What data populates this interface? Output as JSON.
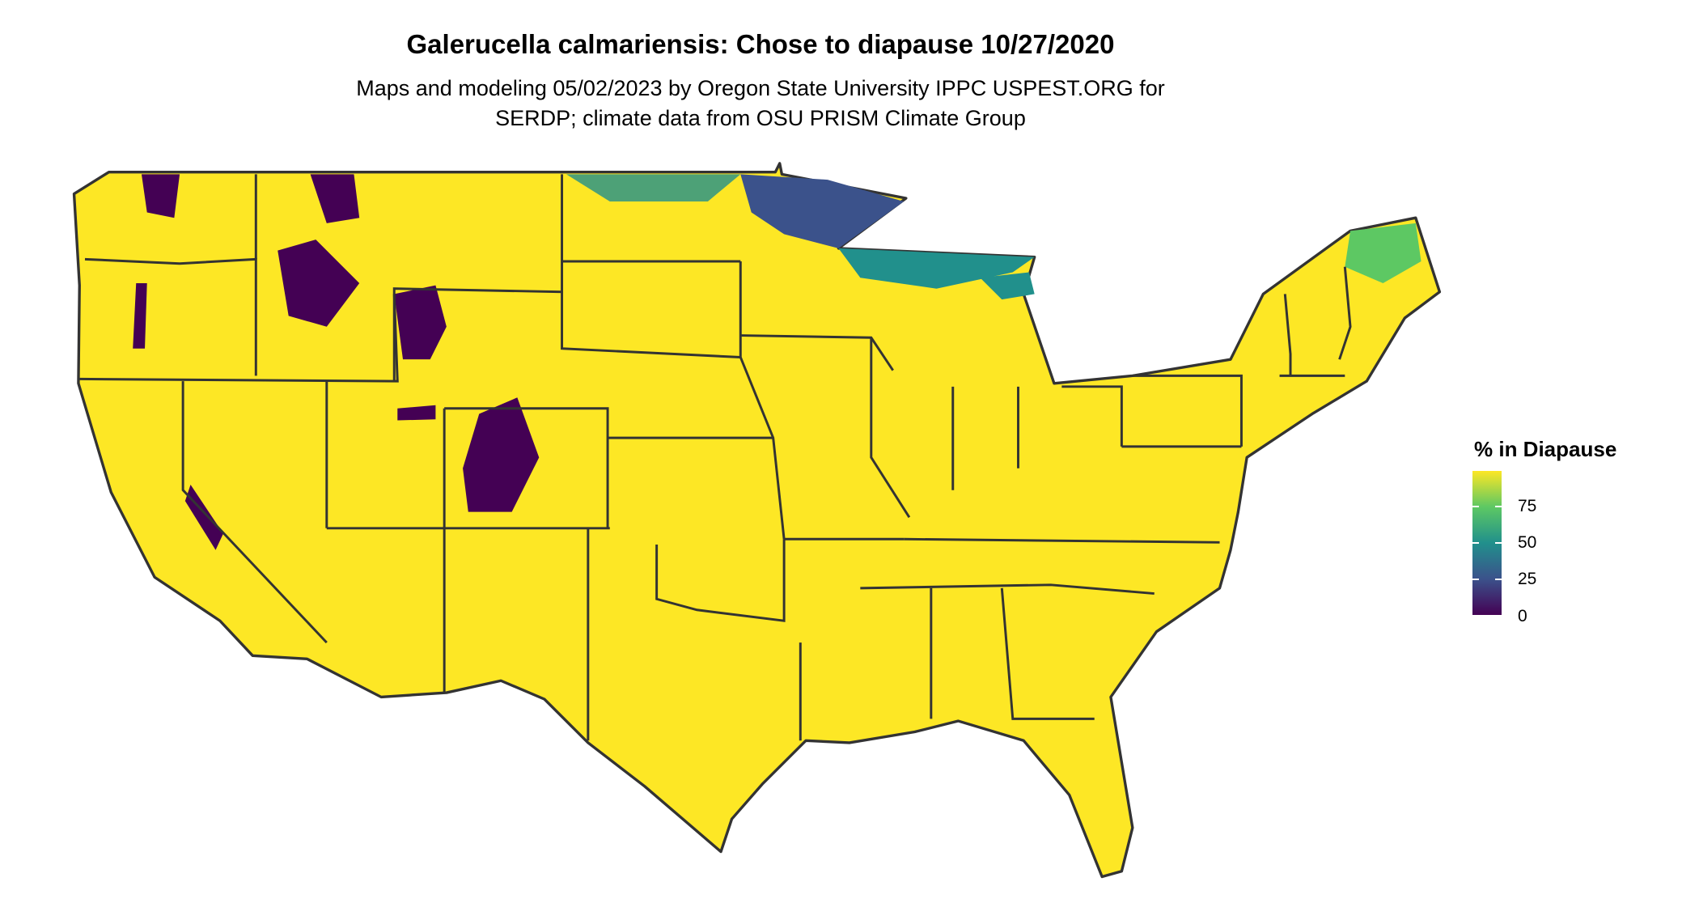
{
  "title": "Galerucella calmariensis: Chose to diapause 10/27/2020",
  "subtitle": [
    "Maps and modeling 05/02/2023 by Oregon State University IPPC USPEST.ORG for",
    "SERDP; climate data from OSU PRISM Climate Group"
  ],
  "chart_data": {
    "type": "heatmap",
    "region": "Contiguous United States (state boundaries)",
    "variable": "% in Diapause",
    "legend": {
      "title": "% in Diapause",
      "ticks": [
        0,
        25,
        50,
        75
      ],
      "range": [
        0,
        100
      ],
      "placement": "right",
      "colormap": "viridis"
    },
    "colors": {
      "low": "#440154",
      "mid": "#21908c",
      "high": "#fde725",
      "border": "#333333"
    },
    "summary": "Mostly near 100% diapause; low values in northern Rocky Mountains (ID, MT, WY, CO, UT), the Cascades/Sierra Nevada, and intermediate values in northern MN, WI, MI Upper Peninsula, ND border, and northern Maine"
  }
}
